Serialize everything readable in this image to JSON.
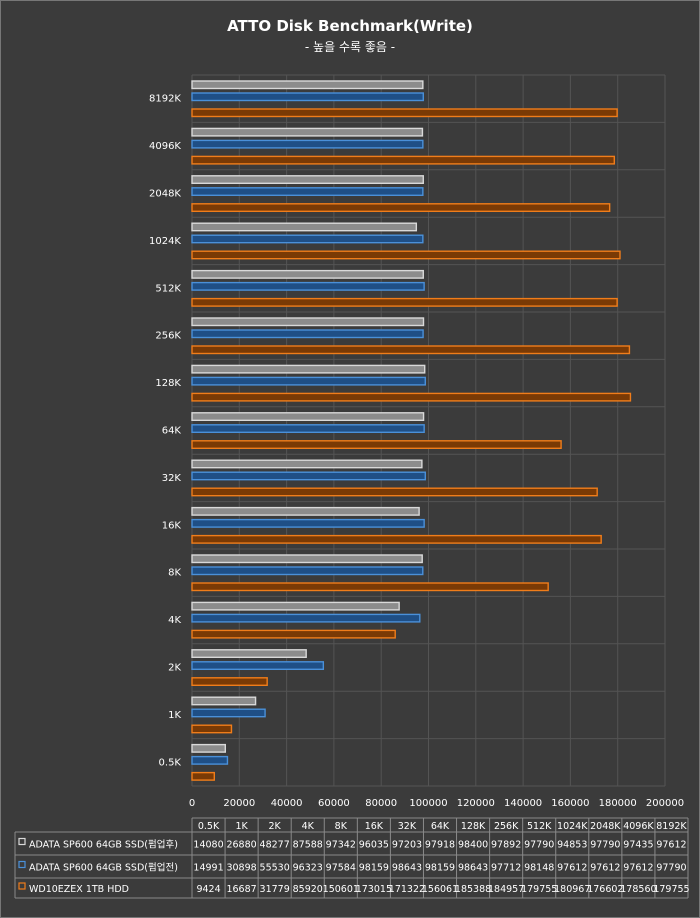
{
  "chart_data": {
    "type": "bar",
    "orientation": "horizontal",
    "title": "ATTO Disk Benchmark(Write)",
    "subtitle": "- 높을 수록 좋음 -",
    "categories": [
      "0.5K",
      "1K",
      "2K",
      "4K",
      "8K",
      "16K",
      "32K",
      "64K",
      "128K",
      "256K",
      "512K",
      "1024K",
      "2048K",
      "4096K",
      "8192K"
    ],
    "xlim": [
      0,
      200000
    ],
    "xticks": [
      0,
      20000,
      40000,
      60000,
      80000,
      100000,
      120000,
      140000,
      160000,
      180000,
      200000
    ],
    "grid": true,
    "legend": "data-table-left",
    "series": [
      {
        "name": "ADATA SP600 64GB SSD(펌업후)",
        "color": "#d9d9d9",
        "values": [
          14080,
          26880,
          48277,
          87588,
          97342,
          96035,
          97203,
          97918,
          98400,
          97892,
          97790,
          94853,
          97790,
          97435,
          97612
        ]
      },
      {
        "name": "ADATA SP600 64GB SSD(펌업전)",
        "color": "#4a90d9",
        "values": [
          14991,
          30898,
          55530,
          96323,
          97584,
          98159,
          98643,
          98159,
          98643,
          97712,
          98148,
          97612,
          97612,
          97612,
          97790
        ]
      },
      {
        "name": "WD10EZEX 1TB HDD",
        "color": "#f07d1a",
        "values": [
          9424,
          16687,
          31779,
          85920,
          150601,
          173015,
          171322,
          156061,
          185388,
          184957,
          179755,
          180967,
          176602,
          178560,
          179755
        ]
      }
    ],
    "table": {
      "rows": [
        [
          "14080",
          "26880",
          "48277",
          "87588",
          "97342",
          "96035",
          "97203",
          "97918",
          "98400",
          "97892",
          "97790",
          "94853",
          "97790",
          "97435",
          "97612"
        ],
        [
          "14991",
          "30898",
          "55530",
          "96323",
          "97584",
          "98159",
          "98643",
          "98159",
          "98643",
          "97712",
          "98148",
          "97612",
          "97612",
          "97612",
          "97790"
        ],
        [
          "9424",
          "16687",
          "31779",
          "85920",
          "150601",
          "173015",
          "171322",
          "156061",
          "185388",
          "184957",
          "179755",
          "180967",
          "176602",
          "178560",
          "179755"
        ]
      ]
    }
  }
}
